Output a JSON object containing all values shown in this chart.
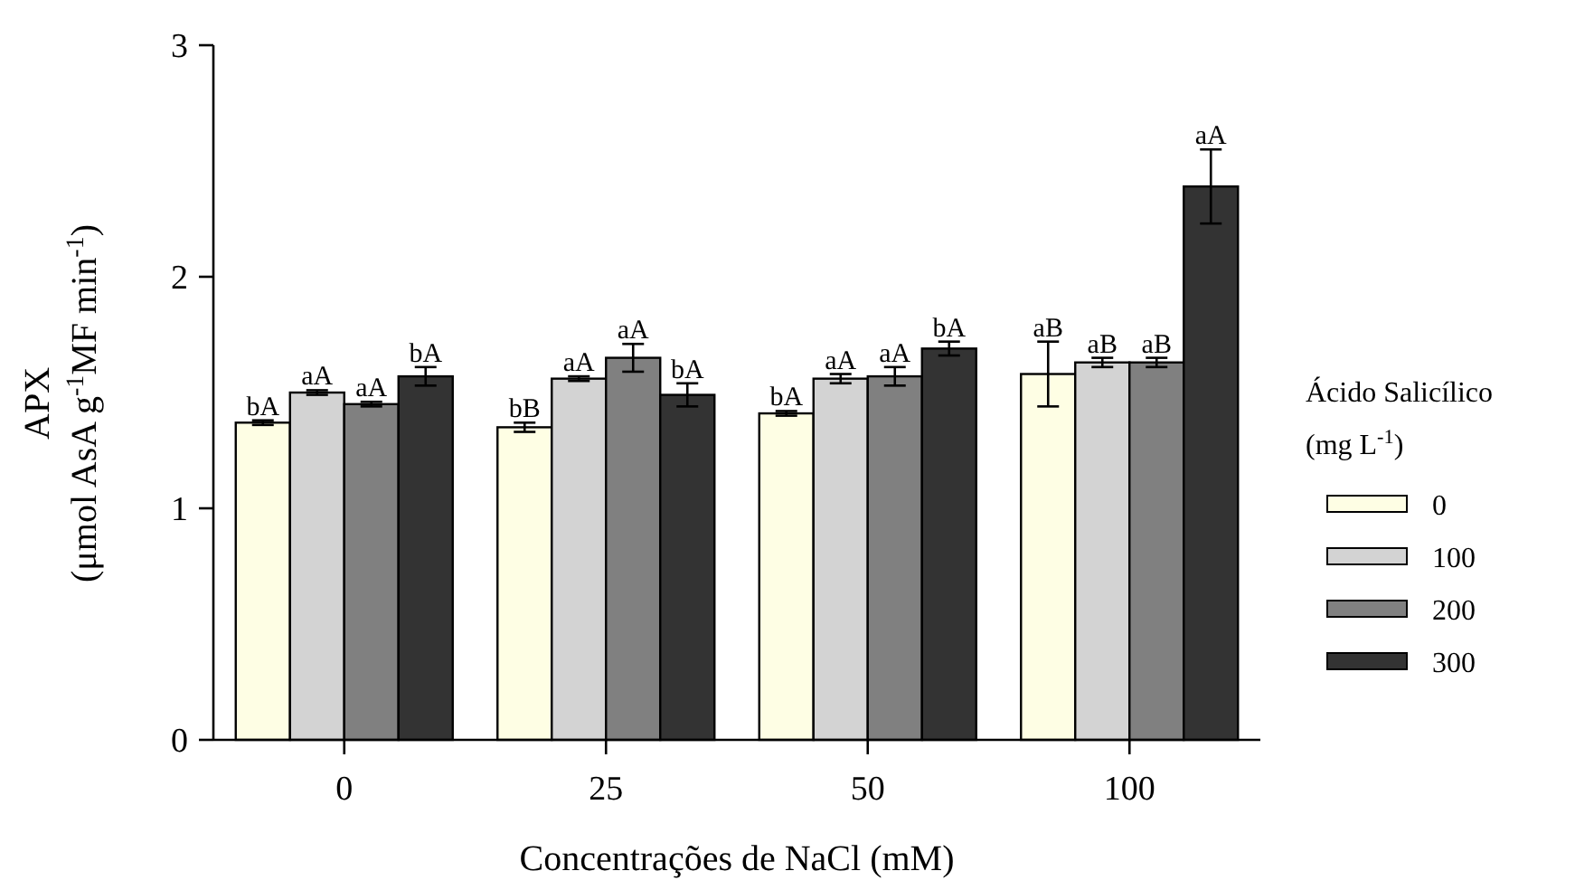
{
  "chart_data": {
    "type": "bar",
    "xlabel": "Concentrações de NaCl (mM)",
    "ylabel": "APX\n(μmol AsA g$^{-1}$MF min$^{-1}$)",
    "legend_title": "Ácido Salicílico\n(mg L$^{-1}$)",
    "categories": [
      "0",
      "25",
      "50",
      "100"
    ],
    "series": [
      {
        "name": "0",
        "color": "#fefee4",
        "values": [
          1.37,
          1.35,
          1.41,
          1.58
        ],
        "errors": [
          0.01,
          0.02,
          0.01,
          0.14
        ],
        "value_labels": [
          "bA",
          "bB",
          "bA",
          "aB"
        ]
      },
      {
        "name": "100",
        "color": "#d3d3d3",
        "values": [
          1.5,
          1.56,
          1.56,
          1.63
        ],
        "errors": [
          0.01,
          0.01,
          0.02,
          0.02
        ],
        "value_labels": [
          "aA",
          "aA",
          "aA",
          "aB"
        ]
      },
      {
        "name": "200",
        "color": "#808080",
        "values": [
          1.45,
          1.65,
          1.57,
          1.63
        ],
        "errors": [
          0.01,
          0.06,
          0.04,
          0.02
        ],
        "value_labels": [
          "aA",
          "aA",
          "aA",
          "aB"
        ]
      },
      {
        "name": "300",
        "color": "#333333",
        "values": [
          1.57,
          1.49,
          1.69,
          2.39
        ],
        "errors": [
          0.04,
          0.05,
          0.03,
          0.16
        ],
        "value_labels": [
          "bA",
          "bA",
          "bA",
          "aA"
        ]
      }
    ],
    "ylim": [
      0,
      3
    ],
    "yticks": [
      0,
      1,
      2,
      3
    ],
    "grid": false,
    "legend": "right"
  }
}
